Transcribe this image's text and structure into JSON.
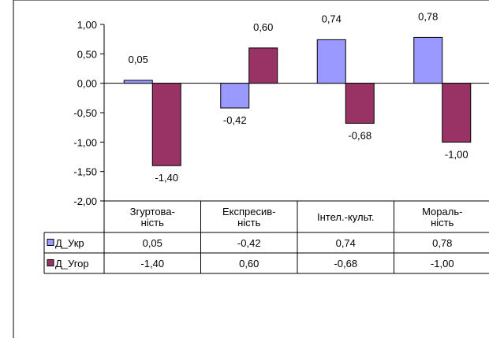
{
  "chart_data": {
    "type": "bar",
    "categories": [
      [
        "Згуртова-",
        "ність"
      ],
      [
        "Експресив-",
        "ність"
      ],
      [
        "Інтел.-культ."
      ],
      [
        "Мораль-",
        "ність"
      ]
    ],
    "series": [
      {
        "name": "Д_Укр",
        "values": [
          0.05,
          -0.42,
          0.74,
          0.78
        ],
        "labels": [
          "0,05",
          "-0,42",
          "0,74",
          "0,78"
        ],
        "color": "#9999ff"
      },
      {
        "name": "Д_Угор",
        "values": [
          -1.4,
          0.6,
          -0.68,
          -1.0
        ],
        "labels": [
          "-1,40",
          "0,60",
          "-0,68",
          "-1,00"
        ],
        "color": "#993366"
      }
    ],
    "ylim": [
      -2.0,
      1.0
    ],
    "yticks": [
      1.0,
      0.5,
      0.0,
      -0.5,
      -1.0,
      -1.5,
      -2.0
    ],
    "ytick_labels": [
      "1,00",
      "0,50",
      "0,00",
      "-0,50",
      "-1,00",
      "-1,50",
      "-2,00"
    ],
    "data_table": true,
    "grid": false
  }
}
